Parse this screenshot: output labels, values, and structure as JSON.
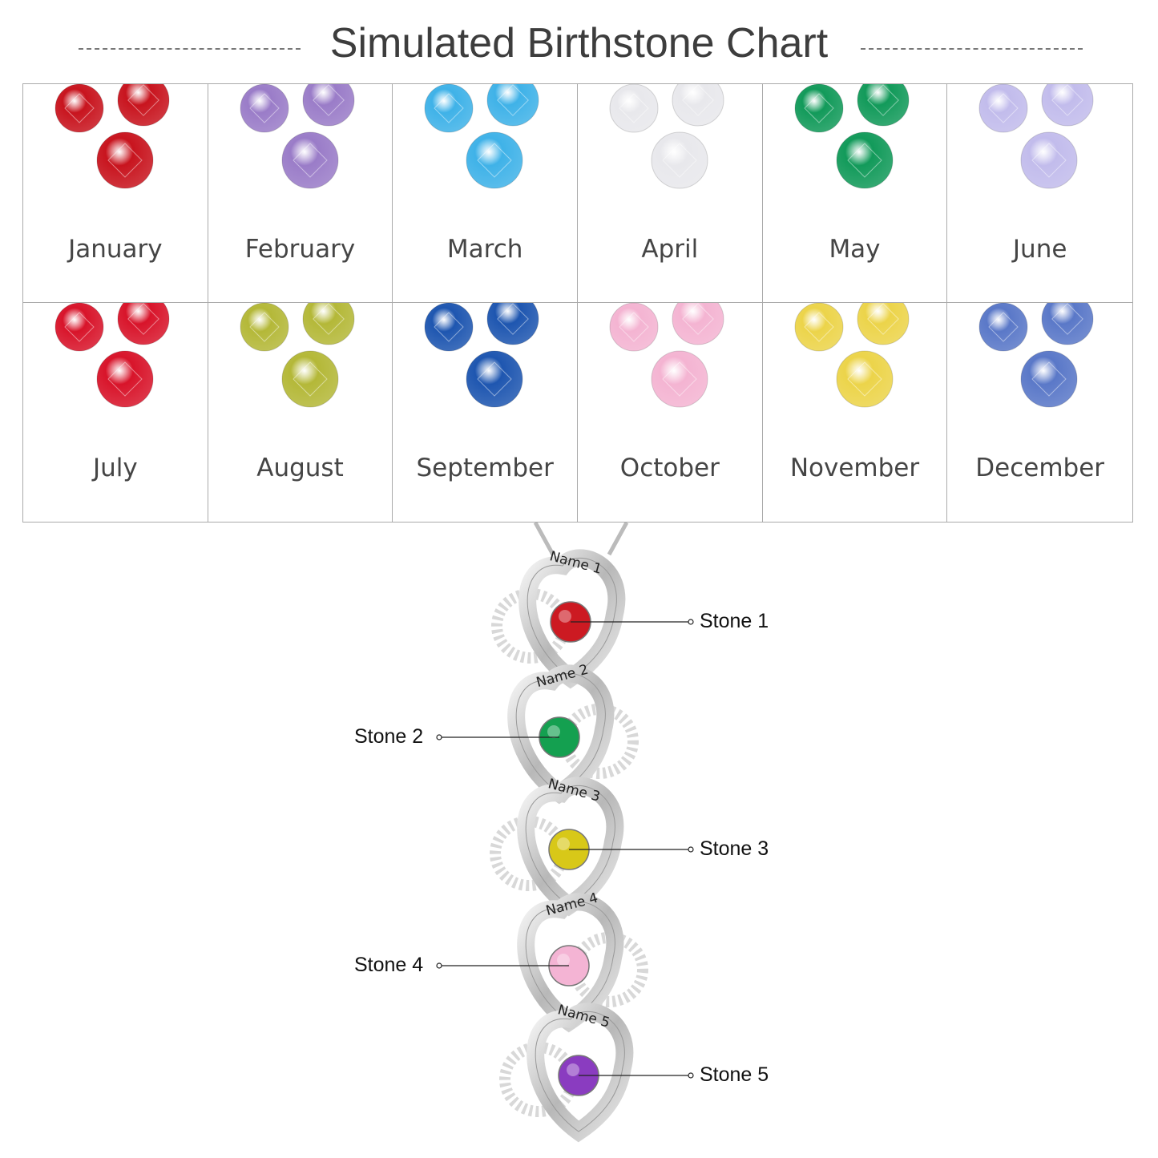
{
  "title": "Simulated Birthstone Chart",
  "months": [
    {
      "label": "January",
      "color": "#c8141e"
    },
    {
      "label": "February",
      "color": "#9a7cc8"
    },
    {
      "label": "March",
      "color": "#3fb2e8"
    },
    {
      "label": "April",
      "color": "#e8e8ec"
    },
    {
      "label": "May",
      "color": "#129a5a"
    },
    {
      "label": "June",
      "color": "#c2bcec"
    },
    {
      "label": "July",
      "color": "#d8142a"
    },
    {
      "label": "August",
      "color": "#b4b838"
    },
    {
      "label": "September",
      "color": "#1e56b0"
    },
    {
      "label": "October",
      "color": "#f4b4d2"
    },
    {
      "label": "November",
      "color": "#ecd44a"
    },
    {
      "label": "December",
      "color": "#5a78c8"
    }
  ],
  "pendant": {
    "hearts": [
      {
        "name": "Name 1",
        "stone_label": "Stone 1",
        "stone_color": "#cc1a22",
        "side": "right"
      },
      {
        "name": "Name 2",
        "stone_label": "Stone 2",
        "stone_color": "#14a050",
        "side": "left"
      },
      {
        "name": "Name 3",
        "stone_label": "Stone 3",
        "stone_color": "#d8c818",
        "side": "right"
      },
      {
        "name": "Name 4",
        "stone_label": "Stone 4",
        "stone_color": "#f4b4d4",
        "side": "left"
      },
      {
        "name": "Name 5",
        "stone_label": "Stone 5",
        "stone_color": "#8a3cc0",
        "side": "right"
      }
    ]
  }
}
